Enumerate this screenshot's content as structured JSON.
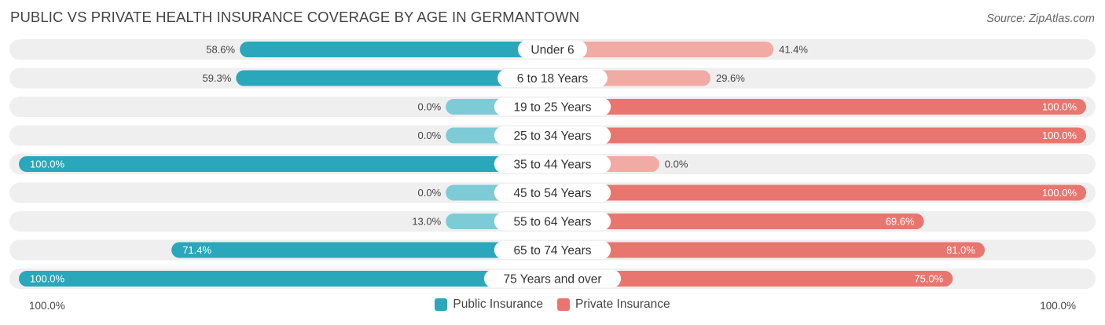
{
  "title": "PUBLIC VS PRIVATE HEALTH INSURANCE COVERAGE BY AGE IN GERMANTOWN",
  "source": "Source: ZipAtlas.com",
  "colors": {
    "public": "#2aa7ba",
    "public_light": "#7dcbd6",
    "private": "#e8766f",
    "private_light": "#f1aaa4",
    "row_bg": "#efefef"
  },
  "axis": {
    "left_label": "100.0%",
    "right_label": "100.0%"
  },
  "legend": {
    "public": "Public Insurance",
    "private": "Private Insurance"
  },
  "chart_data": {
    "type": "bar",
    "orientation": "horizontal-diverging",
    "categories": [
      "Under 6",
      "6 to 18 Years",
      "19 to 25 Years",
      "25 to 34 Years",
      "35 to 44 Years",
      "45 to 54 Years",
      "55 to 64 Years",
      "65 to 74 Years",
      "75 Years and over"
    ],
    "series": [
      {
        "name": "Public Insurance",
        "values": [
          58.6,
          59.3,
          0.0,
          0.0,
          100.0,
          0.0,
          13.0,
          71.4,
          100.0
        ],
        "labels": [
          "58.6%",
          "59.3%",
          "0.0%",
          "0.0%",
          "100.0%",
          "0.0%",
          "13.0%",
          "71.4%",
          "100.0%"
        ]
      },
      {
        "name": "Private Insurance",
        "values": [
          41.4,
          29.6,
          100.0,
          100.0,
          0.0,
          100.0,
          69.6,
          81.0,
          75.0
        ],
        "labels": [
          "41.4%",
          "29.6%",
          "100.0%",
          "100.0%",
          "0.0%",
          "100.0%",
          "69.6%",
          "81.0%",
          "75.0%"
        ]
      }
    ],
    "xlim": [
      0,
      100
    ],
    "legend_position": "bottom-center"
  }
}
